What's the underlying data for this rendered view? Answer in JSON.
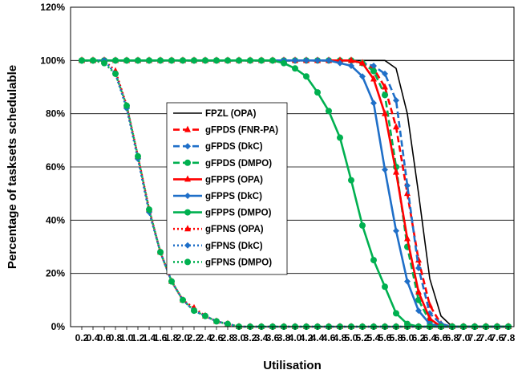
{
  "chart_data": {
    "type": "line",
    "title": "",
    "xlabel": "Utilisation",
    "ylabel": "Percentage of tasksets schedulable",
    "xlim": [
      0.0,
      7.9
    ],
    "ylim": [
      0,
      120
    ],
    "x_ticks": [
      "0.2",
      "0.4",
      "0.6",
      "0.8",
      "1.0",
      "1.2",
      "1.4",
      "1.6",
      "1.8",
      "2.0",
      "2.2",
      "2.4",
      "2.6",
      "2.8",
      "3.0",
      "3.2",
      "3.4",
      "3.6",
      "3.8",
      "4.0",
      "4.2",
      "4.4",
      "4.6",
      "4.8",
      "5.0",
      "5.2",
      "5.4",
      "5.6",
      "5.8",
      "6.0",
      "6.2",
      "6.4",
      "6.6",
      "6.8",
      "7.0",
      "7.2",
      "7.4",
      "7.6",
      "7.8"
    ],
    "y_ticks": [
      "0%",
      "20%",
      "40%",
      "60%",
      "80%",
      "100%",
      "120%"
    ],
    "grid": "horizontal",
    "legend": "center-left",
    "x": [
      0.2,
      0.4,
      0.6,
      0.8,
      1.0,
      1.2,
      1.4,
      1.6,
      1.8,
      2.0,
      2.2,
      2.4,
      2.6,
      2.8,
      3.0,
      3.2,
      3.4,
      3.6,
      3.8,
      4.0,
      4.2,
      4.4,
      4.6,
      4.8,
      5.0,
      5.2,
      5.4,
      5.6,
      5.8,
      6.0,
      6.2,
      6.4,
      6.6,
      6.8,
      7.0,
      7.2,
      7.4,
      7.6,
      7.8
    ],
    "series": [
      {
        "name": "FPZL (OPA)",
        "color": "#000000",
        "dash": "solid",
        "marker": "none",
        "values": [
          100,
          100,
          100,
          100,
          100,
          100,
          100,
          100,
          100,
          100,
          100,
          100,
          100,
          100,
          100,
          100,
          100,
          100,
          100,
          100,
          100,
          100,
          100,
          100,
          100,
          100,
          100,
          100,
          97,
          80,
          50,
          18,
          4,
          0,
          0,
          0,
          0,
          0,
          0
        ]
      },
      {
        "name": "gFPDS (FNR-PA)",
        "color": "#ff0000",
        "dash": "dash",
        "marker": "triangle",
        "values": [
          100,
          100,
          100,
          100,
          100,
          100,
          100,
          100,
          100,
          100,
          100,
          100,
          100,
          100,
          100,
          100,
          100,
          100,
          100,
          100,
          100,
          100,
          100,
          100,
          100,
          99,
          97,
          90,
          75,
          50,
          25,
          8,
          1,
          0,
          0,
          0,
          0,
          0,
          0
        ]
      },
      {
        "name": "gFPDS (DkC)",
        "color": "#1f6fc8",
        "dash": "dash",
        "marker": "diamond",
        "values": [
          100,
          100,
          100,
          100,
          100,
          100,
          100,
          100,
          100,
          100,
          100,
          100,
          100,
          100,
          100,
          100,
          100,
          100,
          100,
          100,
          100,
          100,
          100,
          100,
          100,
          99,
          98,
          95,
          85,
          53,
          22,
          5,
          1,
          0,
          0,
          0,
          0,
          0,
          0
        ]
      },
      {
        "name": "gFPDS (DMPO)",
        "color": "#00b050",
        "dash": "dash",
        "marker": "circle",
        "values": [
          100,
          100,
          100,
          100,
          100,
          100,
          100,
          100,
          100,
          100,
          100,
          100,
          100,
          100,
          100,
          100,
          100,
          100,
          100,
          100,
          100,
          100,
          100,
          100,
          100,
          99,
          96,
          87,
          60,
          30,
          10,
          2,
          0,
          0,
          0,
          0,
          0,
          0,
          0
        ]
      },
      {
        "name": "gFPPS (OPA)",
        "color": "#ff0000",
        "dash": "solid",
        "marker": "triangle",
        "values": [
          100,
          100,
          100,
          100,
          100,
          100,
          100,
          100,
          100,
          100,
          100,
          100,
          100,
          100,
          100,
          100,
          100,
          100,
          100,
          100,
          100,
          100,
          100,
          100,
          100,
          99,
          93,
          80,
          58,
          33,
          13,
          3,
          0,
          0,
          0,
          0,
          0,
          0,
          0
        ]
      },
      {
        "name": "gFPPS (DkC)",
        "color": "#1f6fc8",
        "dash": "solid",
        "marker": "diamond",
        "values": [
          100,
          100,
          100,
          100,
          100,
          100,
          100,
          100,
          100,
          100,
          100,
          100,
          100,
          100,
          100,
          100,
          100,
          100,
          100,
          100,
          100,
          100,
          100,
          99,
          98,
          94,
          84,
          59,
          36,
          17,
          6,
          1,
          0,
          0,
          0,
          0,
          0,
          0,
          0
        ]
      },
      {
        "name": "gFPPS (DMPO)",
        "color": "#00b050",
        "dash": "solid",
        "marker": "circle",
        "values": [
          100,
          100,
          100,
          100,
          100,
          100,
          100,
          100,
          100,
          100,
          100,
          100,
          100,
          100,
          100,
          100,
          100,
          100,
          99,
          97,
          94,
          88,
          81,
          71,
          55,
          38,
          25,
          15,
          5,
          1,
          0,
          0,
          0,
          0,
          0,
          0,
          0,
          0,
          0
        ]
      },
      {
        "name": "gFPNS (OPA)",
        "color": "#ff0000",
        "dash": "dot",
        "marker": "triangle",
        "values": [
          100,
          100,
          100,
          96,
          83,
          64,
          44,
          28,
          17,
          10,
          7,
          4,
          2,
          1,
          0,
          0,
          0,
          0,
          0,
          0,
          0,
          0,
          0,
          0,
          0,
          0,
          0,
          0,
          0,
          0,
          0,
          0,
          0,
          0,
          0,
          0,
          0,
          0,
          0
        ]
      },
      {
        "name": "gFPNS (DkC)",
        "color": "#1f6fc8",
        "dash": "dot",
        "marker": "diamond",
        "values": [
          100,
          100,
          100,
          95,
          82,
          63,
          43,
          28,
          17,
          10,
          6,
          4,
          2,
          1,
          0,
          0,
          0,
          0,
          0,
          0,
          0,
          0,
          0,
          0,
          0,
          0,
          0,
          0,
          0,
          0,
          0,
          0,
          0,
          0,
          0,
          0,
          0,
          0,
          0
        ]
      },
      {
        "name": "gFPNS (DMPO)",
        "color": "#00b050",
        "dash": "dot",
        "marker": "circle",
        "values": [
          100,
          100,
          99,
          95,
          83,
          64,
          44,
          28,
          17,
          10,
          6,
          4,
          2,
          1,
          0,
          0,
          0,
          0,
          0,
          0,
          0,
          0,
          0,
          0,
          0,
          0,
          0,
          0,
          0,
          0,
          0,
          0,
          0,
          0,
          0,
          0,
          0,
          0,
          0
        ]
      }
    ]
  }
}
